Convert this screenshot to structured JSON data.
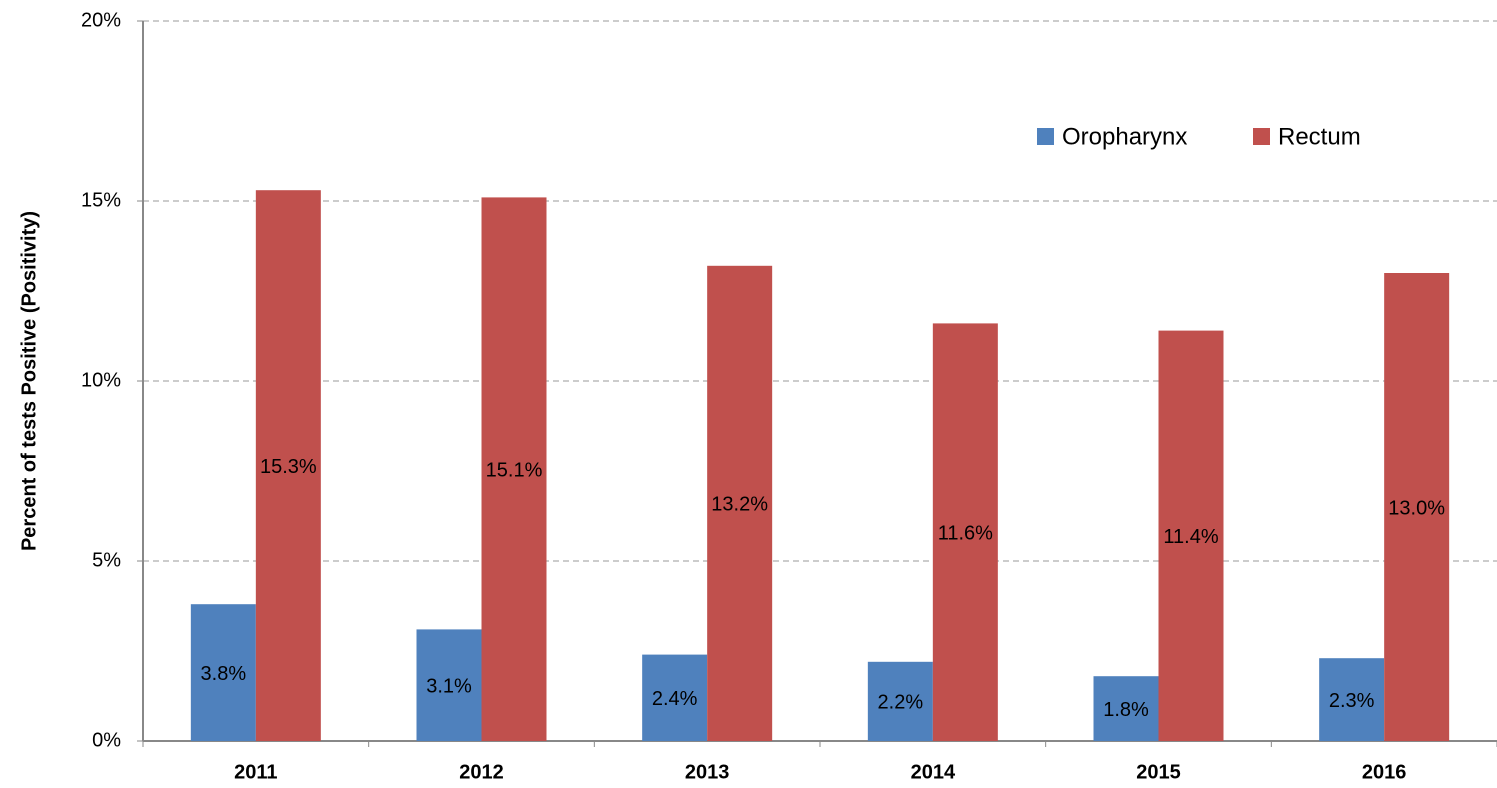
{
  "chart_data": {
    "type": "bar",
    "y_label": "Percent of tests Positive (Positivity)",
    "categories": [
      "2011",
      "2012",
      "2013",
      "2014",
      "2015",
      "2016"
    ],
    "series": [
      {
        "name": "Oropharynx",
        "color": "#4f81bd",
        "values": [
          3.8,
          3.1,
          2.4,
          2.2,
          1.8,
          2.3
        ],
        "value_labels": [
          "3.8%",
          "3.1%",
          "2.4%",
          "2.2%",
          "1.8%",
          "2.3%"
        ]
      },
      {
        "name": "Rectum",
        "color": "#c0504d",
        "values": [
          15.3,
          15.1,
          13.2,
          11.6,
          11.4,
          13.0
        ],
        "value_labels": [
          "15.3%",
          "15.1%",
          "13.2%",
          "11.6%",
          "11.4%",
          "13.0%"
        ]
      }
    ],
    "ylim": [
      0,
      20
    ],
    "yticks": [
      {
        "value": 0,
        "label": "0%"
      },
      {
        "value": 5,
        "label": "5%"
      },
      {
        "value": 10,
        "label": "10%"
      },
      {
        "value": 15,
        "label": "15%"
      },
      {
        "value": 20,
        "label": "20%"
      }
    ],
    "grid": true,
    "legend": "upper right"
  }
}
